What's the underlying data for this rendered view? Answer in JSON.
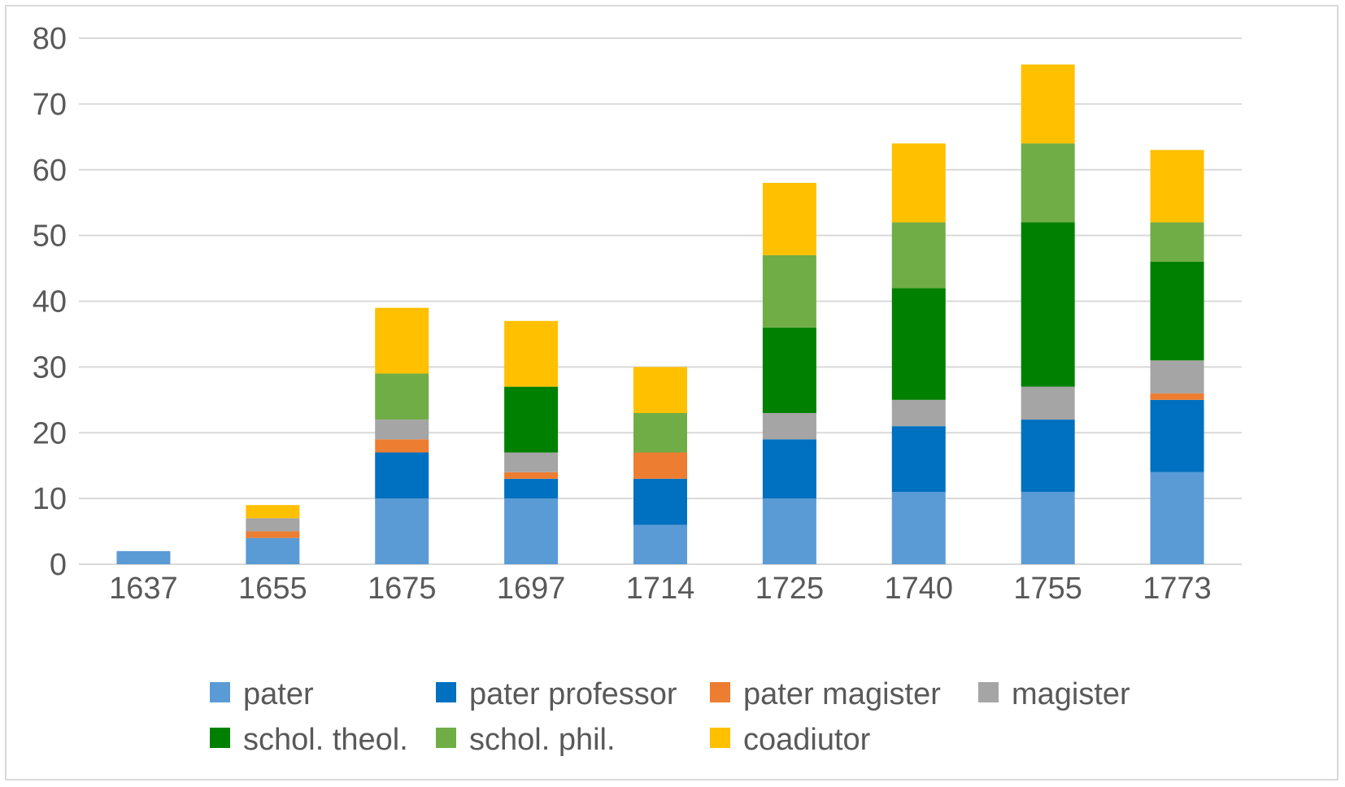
{
  "chart_data": {
    "type": "bar",
    "stacked": true,
    "title": "",
    "xlabel": "",
    "ylabel": "",
    "ylim": [
      0,
      80
    ],
    "yticks": [
      0,
      10,
      20,
      30,
      40,
      50,
      60,
      70,
      80
    ],
    "grid": true,
    "legend_position": "bottom",
    "categories": [
      "1637",
      "1655",
      "1675",
      "1697",
      "1714",
      "1725",
      "1740",
      "1755",
      "1773"
    ],
    "series": [
      {
        "name": "pater",
        "color": "#5b9bd5",
        "values": [
          2,
          4,
          10,
          10,
          6,
          10,
          11,
          11,
          14
        ]
      },
      {
        "name": "pater professor",
        "color": "#0070c0",
        "values": [
          0,
          0,
          7,
          3,
          7,
          9,
          10,
          11,
          11
        ]
      },
      {
        "name": "pater magister",
        "color": "#ed7d31",
        "values": [
          0,
          1,
          2,
          1,
          4,
          0,
          0,
          0,
          1
        ]
      },
      {
        "name": "magister",
        "color": "#a5a5a5",
        "values": [
          0,
          2,
          3,
          3,
          0,
          4,
          4,
          5,
          5
        ]
      },
      {
        "name": "schol. theol.",
        "color": "#008000",
        "values": [
          0,
          0,
          0,
          10,
          0,
          13,
          17,
          25,
          15
        ]
      },
      {
        "name": "schol. phil.",
        "color": "#70ad47",
        "values": [
          0,
          0,
          7,
          0,
          6,
          11,
          10,
          12,
          6
        ]
      },
      {
        "name": "coadiutor",
        "color": "#ffc000",
        "values": [
          0,
          2,
          10,
          10,
          7,
          11,
          12,
          12,
          11
        ]
      }
    ]
  },
  "colors": {
    "gridline": "#d9d9d9",
    "axis_text": "#595959",
    "frame_border": "#d9d9d9"
  }
}
